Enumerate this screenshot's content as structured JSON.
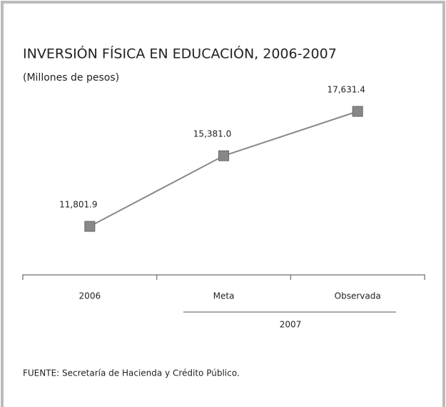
{
  "chart_data": {
    "type": "line",
    "title": "INVERSIÓN FÍSICA EN EDUCACIÓN, 2006-2007",
    "subtitle": "(Millones de pesos)",
    "categories": [
      "2006",
      "Meta",
      "Observada"
    ],
    "category_group": "2007",
    "series": [
      {
        "name": "Inversión física",
        "color": "#888888",
        "values": [
          11801.9,
          15381.0,
          17631.4
        ],
        "value_labels": [
          "11,801.9",
          "15,381.0",
          "17,631.4"
        ]
      }
    ],
    "source": "FUENTE: Secretaría de Hacienda y Crédito Público."
  }
}
